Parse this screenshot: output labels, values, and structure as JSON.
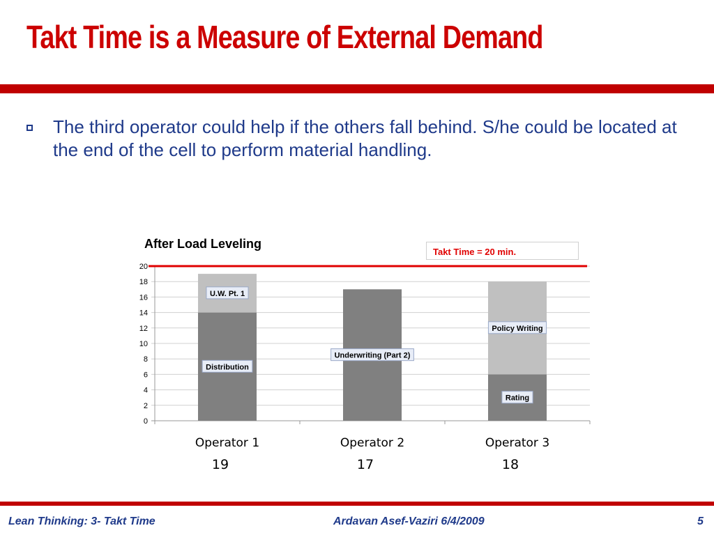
{
  "slide": {
    "title": "Takt Time is a Measure of External Demand",
    "bullet": "The third operator could help if the others fall behind. S/he could be located at the end of the cell to perform material handling."
  },
  "colors": {
    "title": "#cc0000",
    "rule": "#c00000",
    "body_text": "#1f3a8a",
    "bar_dark": "#808080",
    "bar_light": "#c0c0c0",
    "takt_line": "#e00000"
  },
  "chart_data": {
    "type": "bar",
    "stacked": true,
    "title": "After Load Leveling",
    "categories": [
      "Operator 1",
      "Operator 2",
      "Operator 3"
    ],
    "totals": [
      "19",
      "17",
      "18"
    ],
    "ylim": [
      0,
      20
    ],
    "yticks": [
      "0",
      "2",
      "4",
      "6",
      "8",
      "10",
      "12",
      "14",
      "16",
      "18",
      "20"
    ],
    "grid": true,
    "reference_line": {
      "label": "Takt Time = 20 min.",
      "value": 20
    },
    "segments": [
      {
        "category": "Operator 1",
        "label": "Distribution",
        "bottom": 0,
        "top": 14,
        "color": "#808080"
      },
      {
        "category": "Operator 1",
        "label": "U.W. Pt. 1",
        "bottom": 14,
        "top": 19,
        "color": "#c0c0c0"
      },
      {
        "category": "Operator 2",
        "label": "Underwriting (Part 2)",
        "bottom": 0,
        "top": 17,
        "color": "#808080"
      },
      {
        "category": "Operator 3",
        "label": "Rating",
        "bottom": 0,
        "top": 6,
        "color": "#808080"
      },
      {
        "category": "Operator 3",
        "label": "Policy Writing",
        "bottom": 6,
        "top": 18,
        "color": "#c0c0c0"
      }
    ]
  },
  "footer": {
    "left": "Lean Thinking:  3- Takt Time",
    "center": "Ardavan Asef-Vaziri    6/4/2009",
    "page": "5"
  }
}
